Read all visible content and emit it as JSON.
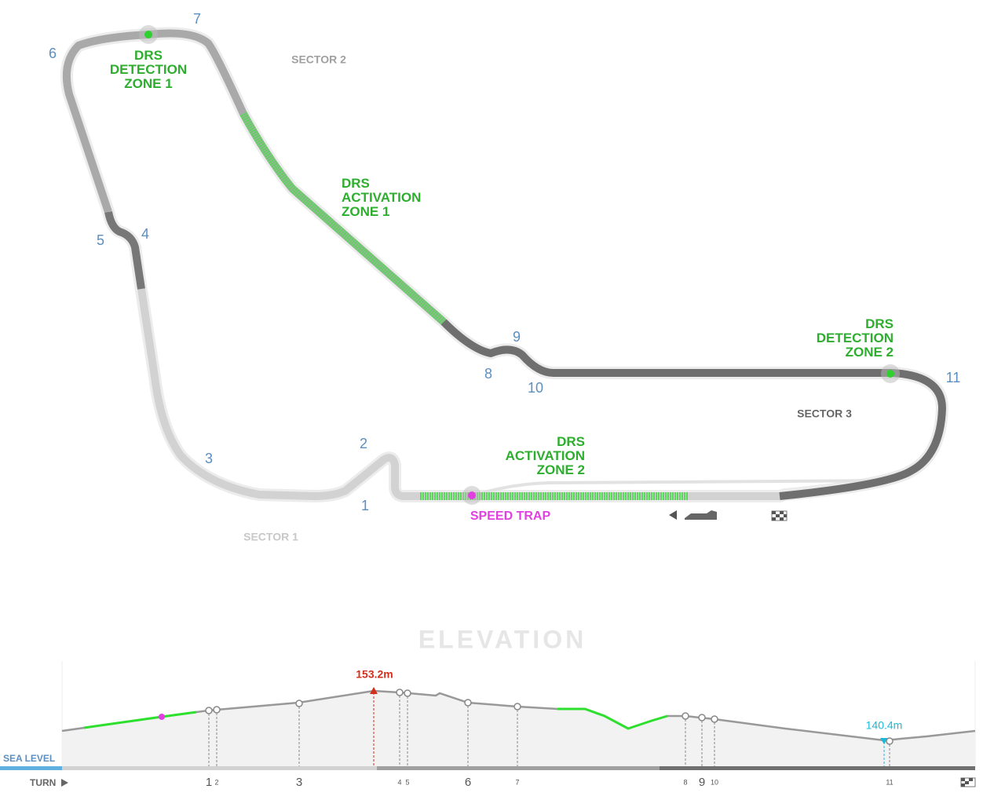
{
  "track": {
    "turns": [
      "1",
      "2",
      "3",
      "4",
      "5",
      "6",
      "7",
      "8",
      "9",
      "10",
      "11"
    ],
    "sectors": [
      "SECTOR 1",
      "SECTOR 2",
      "SECTOR 3"
    ],
    "drs_labels": [
      {
        "lines": [
          "DRS",
          "DETECTION",
          "ZONE 1"
        ]
      },
      {
        "lines": [
          "DRS",
          "ACTIVATION",
          "ZONE 1"
        ]
      },
      {
        "lines": [
          "DRS",
          "DETECTION",
          "ZONE 2"
        ]
      },
      {
        "lines": [
          "DRS",
          "ACTIVATION",
          "ZONE 2"
        ]
      }
    ],
    "speed_trap": "SPEED TRAP"
  },
  "elevation": {
    "title": "ELEVATION",
    "max_label": "153.2m",
    "min_label": "140.4m",
    "sea_level": "SEA LEVEL",
    "turn_label": "TURN",
    "turns": [
      "1",
      "2",
      "3",
      "4",
      "5",
      "6",
      "7",
      "8",
      "9",
      "10",
      "11"
    ]
  }
}
